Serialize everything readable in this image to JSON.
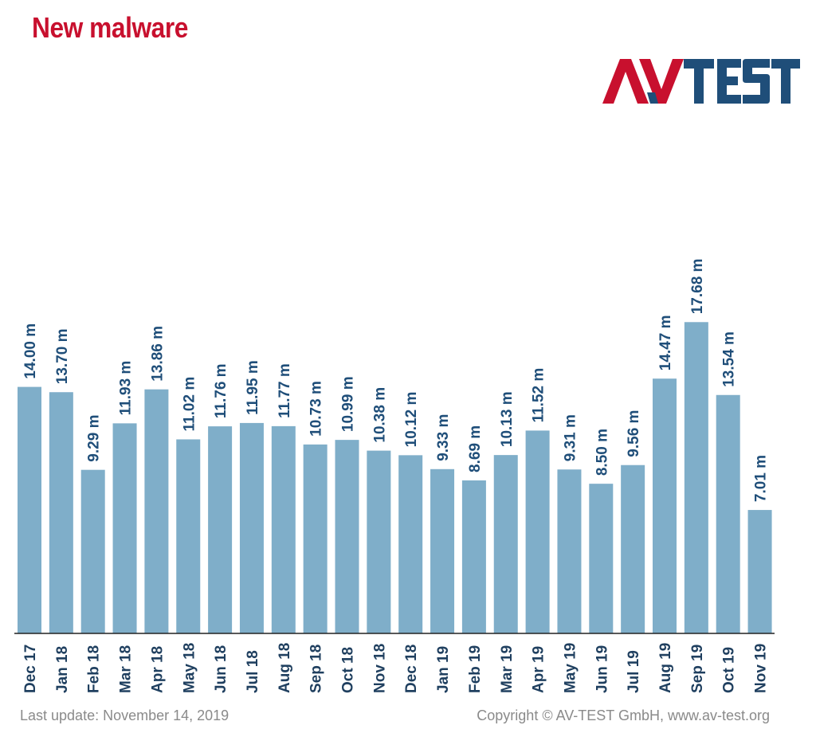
{
  "title": "New malware",
  "logo": {
    "text_a": "AV",
    "text_b": "TEST",
    "colors": {
      "red": "#c8102e",
      "blue": "#1f4e79"
    }
  },
  "footer": {
    "last_update": "Last update: November 14, 2019",
    "copyright": "Copyright © AV-TEST GmbH, www.av-test.org"
  },
  "colors": {
    "bar": "#7faec9",
    "value_label": "#1f4e79",
    "axis_label": "#1f3f5f",
    "axis_line": "#222222"
  },
  "chart_data": {
    "type": "bar",
    "title": "New malware",
    "xlabel": "",
    "ylabel": "",
    "unit_suffix": " m",
    "ylim": [
      0,
      22
    ],
    "grid": false,
    "categories": [
      "Dec 17",
      "Jan 18",
      "Feb 18",
      "Mar 18",
      "Apr 18",
      "May 18",
      "Jun 18",
      "Jul 18",
      "Aug 18",
      "Sep 18",
      "Oct 18",
      "Nov 18",
      "Dec 18",
      "Jan 19",
      "Feb 19",
      "Mar 19",
      "Apr 19",
      "May 19",
      "Jun 19",
      "Jul 19",
      "Aug 19",
      "Sep 19",
      "Oct 19",
      "Nov 19"
    ],
    "values": [
      14.0,
      13.7,
      9.29,
      11.93,
      13.86,
      11.02,
      11.76,
      11.95,
      11.77,
      10.73,
      10.99,
      10.38,
      10.12,
      9.33,
      8.69,
      10.13,
      11.52,
      9.31,
      8.5,
      9.56,
      14.47,
      17.68,
      13.54,
      7.01
    ],
    "value_labels": [
      "14.00 m",
      "13.70 m",
      "9.29 m",
      "11.93 m",
      "13.86 m",
      "11.02 m",
      "11.76 m",
      "11.95 m",
      "11.77 m",
      "10.73 m",
      "10.99 m",
      "10.38 m",
      "10.12 m",
      "9.33 m",
      "8.69 m",
      "10.13 m",
      "11.52 m",
      "9.31 m",
      "8.50 m",
      "9.56 m",
      "14.47 m",
      "17.68 m",
      "13.54 m",
      "7.01 m"
    ]
  }
}
